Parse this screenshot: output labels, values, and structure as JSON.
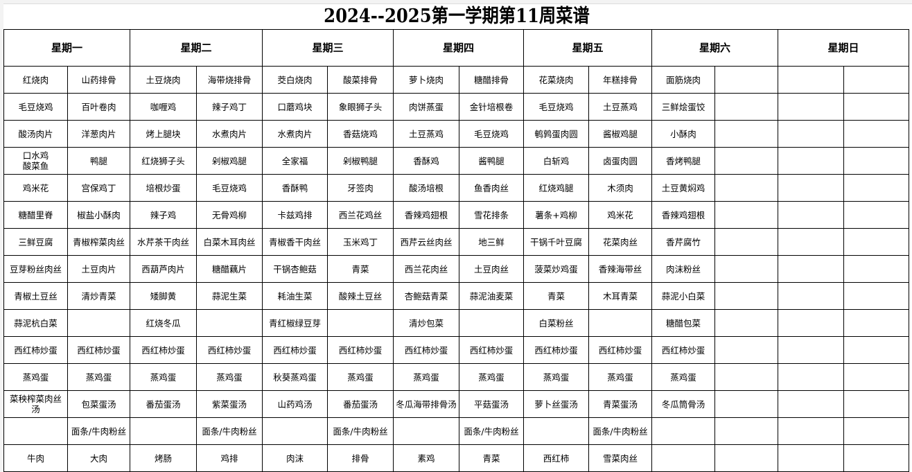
{
  "title": "2024--2025第一学期第11周菜谱",
  "days": [
    "星期一",
    "星期二",
    "星期三",
    "星期四",
    "星期五",
    "星期六",
    "星期日"
  ],
  "rows": [
    [
      "红烧肉",
      "山药排骨",
      "土豆烧肉",
      "海带烧排骨",
      "茭白烧肉",
      "酸菜排骨",
      "萝卜烧肉",
      "糖醋排骨",
      "花菜烧肉",
      "年糕排骨",
      "面筋烧肉",
      "",
      "",
      ""
    ],
    [
      "毛豆烧鸡",
      "百叶卷肉",
      "咖喱鸡",
      "辣子鸡丁",
      "口蘑鸡块",
      "象眼狮子头",
      "肉饼蒸蛋",
      "金针培根卷",
      "毛豆烧鸡",
      "土豆蒸鸡",
      "三鲜烩蛋饺",
      "",
      "",
      ""
    ],
    [
      "酸汤肉片",
      "洋葱肉片",
      "烤上腿块",
      "水煮肉片",
      "水煮肉片",
      "香菇烧鸡",
      "土豆蒸鸡",
      "毛豆烧鸡",
      "鹌鹑蛋肉圆",
      "酱椒鸡腿",
      "小酥肉",
      "",
      "",
      ""
    ],
    [
      "口水鸡\n酸菜鱼",
      "鸭腿",
      "红烧狮子头",
      "剁椒鸡腿",
      "全家福",
      "剁椒鸭腿",
      "香酥鸡",
      "酱鸭腿",
      "白斩鸡",
      "卤蛋肉圆",
      "香烤鸭腿",
      "",
      "",
      ""
    ],
    [
      "鸡米花",
      "宫保鸡丁",
      "培根炒蛋",
      "毛豆烧鸡",
      "香酥鸭",
      "牙签肉",
      "酸汤培根",
      "鱼香肉丝",
      "红烧鸡腿",
      "木须肉",
      "土豆黄焖鸡",
      "",
      "",
      ""
    ],
    [
      "糖醋里脊",
      "椒盐小酥肉",
      "辣子鸡",
      "无骨鸡柳",
      "卡兹鸡排",
      "西兰花鸡丝",
      "香辣鸡翅根",
      "雪花排条",
      "薯条+鸡柳",
      "鸡米花",
      "香辣鸡翅根",
      "",
      "",
      ""
    ],
    [
      "三鲜豆腐",
      "青椒榨菜肉丝",
      "水芹茶干肉丝",
      "白菜木耳肉丝",
      "青椒香干肉丝",
      "玉米鸡丁",
      "西芹云丝肉丝",
      "地三鲜",
      "干锅千叶豆腐",
      "花菜肉丝",
      "香芹腐竹",
      "",
      "",
      ""
    ],
    [
      "豆芽粉丝肉丝",
      "土豆肉片",
      "西葫芦肉片",
      "糖醋藕片",
      "干锅杏鲍菇",
      "青菜",
      "西兰花肉丝",
      "土豆肉丝",
      "菠菜炒鸡蛋",
      "香辣海带丝",
      "肉沫粉丝",
      "",
      "",
      ""
    ],
    [
      "青椒土豆丝",
      "清炒青菜",
      "矮脚黄",
      "蒜泥生菜",
      "耗油生菜",
      "酸辣土豆丝",
      "杏鲍菇青菜",
      "蒜泥油麦菜",
      "青菜",
      "木耳青菜",
      "蒜泥小白菜",
      "",
      "",
      ""
    ],
    [
      "蒜泥杭白菜",
      "",
      "红烧冬瓜",
      "",
      "青红椒绿豆芽",
      "",
      "清炒包菜",
      "",
      "白菜粉丝",
      "",
      "糖醋包菜",
      "",
      "",
      ""
    ],
    [
      "西红柿炒蛋",
      "西红柿炒蛋",
      "西红柿炒蛋",
      "西红柿炒蛋",
      "西红柿炒蛋",
      "西红柿炒蛋",
      "西红柿炒蛋",
      "西红柿炒蛋",
      "西红柿炒蛋",
      "西红柿炒蛋",
      "西红柿炒蛋",
      "",
      "",
      ""
    ],
    [
      "蒸鸡蛋",
      "蒸鸡蛋",
      "蒸鸡蛋",
      "蒸鸡蛋",
      "秋葵蒸鸡蛋",
      "蒸鸡蛋",
      "蒸鸡蛋",
      "蒸鸡蛋",
      "蒸鸡蛋",
      "蒸鸡蛋",
      "蒸鸡蛋",
      "",
      "",
      ""
    ],
    [
      "菜秧榨菜肉丝\n汤",
      "包菜蛋汤",
      "番茄蛋汤",
      "紫菜蛋汤",
      "山药鸡汤",
      "番茄蛋汤",
      "冬瓜海带排骨汤",
      "平菇蛋汤",
      "萝卜丝蛋汤",
      "青菜蛋汤",
      "冬瓜筒骨汤",
      "",
      "",
      ""
    ],
    [
      "",
      "面条/牛肉粉丝",
      "",
      "面条/牛肉粉丝",
      "",
      "面条/牛肉粉丝",
      "",
      "面条/牛肉粉丝",
      "",
      "面条/牛肉粉丝",
      "",
      "",
      "",
      ""
    ],
    [
      "牛肉",
      "大肉",
      "烤肠",
      "鸡排",
      "肉沫",
      "排骨",
      "素鸡",
      "青菜",
      "西红柿",
      "雪菜肉丝",
      "",
      "",
      "",
      ""
    ]
  ]
}
